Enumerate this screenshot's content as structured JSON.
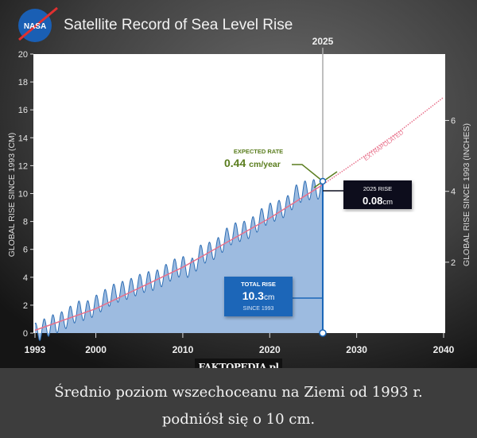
{
  "chart_data": {
    "type": "area",
    "title": "Satellite Record of Sea Level Rise",
    "logo": "NASA",
    "ylabel": "GLOBAL RISE SINCE 1993 (CM)",
    "ylabel_right": "GLOBAL RISE SINCE 1993 (INCHES)",
    "xlim": [
      1993,
      2040
    ],
    "ylim": [
      0,
      20
    ],
    "x_ticks": [
      "1993",
      "2000",
      "2010",
      "2020",
      "2030",
      "2040"
    ],
    "y_ticks": [
      "0",
      "2",
      "4",
      "6",
      "8",
      "10",
      "12",
      "14",
      "16",
      "18",
      "20"
    ],
    "y_right_ticks": [
      "2",
      "4",
      "6"
    ],
    "grid": false,
    "series": [
      {
        "kind": "measured",
        "color": "#2f6fb5",
        "fill": "#9dbbe0",
        "seasonal_amplitude_cm": 0.7,
        "x": [
          1993,
          1994,
          1995,
          1996,
          1997,
          1998,
          1999,
          2000,
          2001,
          2002,
          2003,
          2004,
          2005,
          2006,
          2007,
          2008,
          2009,
          2010,
          2011,
          2012,
          2013,
          2014,
          2015,
          2016,
          2017,
          2018,
          2019,
          2020,
          2021,
          2022,
          2023,
          2024,
          2025
        ],
        "y": [
          0.0,
          0.3,
          0.6,
          0.8,
          1.2,
          1.6,
          1.6,
          2.0,
          2.4,
          2.8,
          3.0,
          3.2,
          3.5,
          3.7,
          3.8,
          4.2,
          4.6,
          4.8,
          4.6,
          5.6,
          5.8,
          6.1,
          6.8,
          7.2,
          7.3,
          7.6,
          8.2,
          8.6,
          8.8,
          9.1,
          9.9,
          10.2,
          10.3
        ]
      },
      {
        "kind": "trend",
        "color": "#e8708a",
        "x": [
          1993,
          2000,
          2010,
          2020,
          2026
        ],
        "y": [
          0.2,
          1.75,
          4.72,
          8.24,
          10.6
        ]
      },
      {
        "kind": "extrapolated",
        "label": "EXTRAPOLATED",
        "color": "#e8708a",
        "x": [
          2026,
          2030,
          2035,
          2040
        ],
        "y": [
          10.6,
          12.3,
          14.5,
          16.9
        ]
      }
    ],
    "marker_year_label": "2025",
    "annotations": {
      "expected_rate": {
        "title": "EXPECTED RATE",
        "value": "0.44",
        "unit": "cm/year",
        "color": "#5a7d1e"
      },
      "rise_2025": {
        "title": "2025 RISE",
        "value": "0.08",
        "unit": "cm"
      },
      "total_rise": {
        "title": "TOTAL RISE",
        "value": "10.3",
        "unit": "cm",
        "sub": "SINCE 1993"
      }
    }
  },
  "watermark": "FAKTOPEDIA.pl",
  "caption": {
    "line1": "Średnio poziom wszechoceanu na Ziemi od 1993 r.",
    "line2": "podniósł się o 10 cm."
  }
}
